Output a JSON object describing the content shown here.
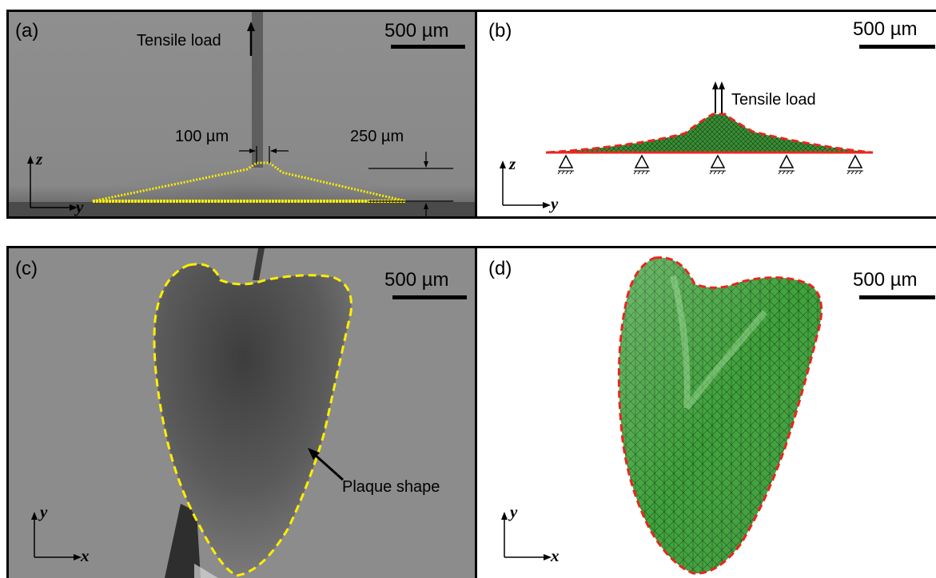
{
  "panels": {
    "a": {
      "label": "(a)",
      "scale": "500 µm",
      "load_label": "Tensile load",
      "dim_top": "100 µm",
      "dim_height": "250 µm",
      "axis_v": "z",
      "axis_h": "y"
    },
    "b": {
      "label": "(b)",
      "scale": "500 µm",
      "load_label": "Tensile load",
      "axis_v": "z",
      "axis_h": "y"
    },
    "c": {
      "label": "(c)",
      "scale": "500 µm",
      "annotation": "Plaque shape",
      "axis_v": "y",
      "axis_h": "x"
    },
    "d": {
      "label": "(d)",
      "scale": "500 µm",
      "axis_v": "y",
      "axis_h": "x"
    }
  },
  "colors": {
    "outline_yellow": "#ffee00",
    "outline_red": "#e8261e",
    "mesh_green": "#3da53a",
    "photo_gray": "#8a8a8a"
  }
}
